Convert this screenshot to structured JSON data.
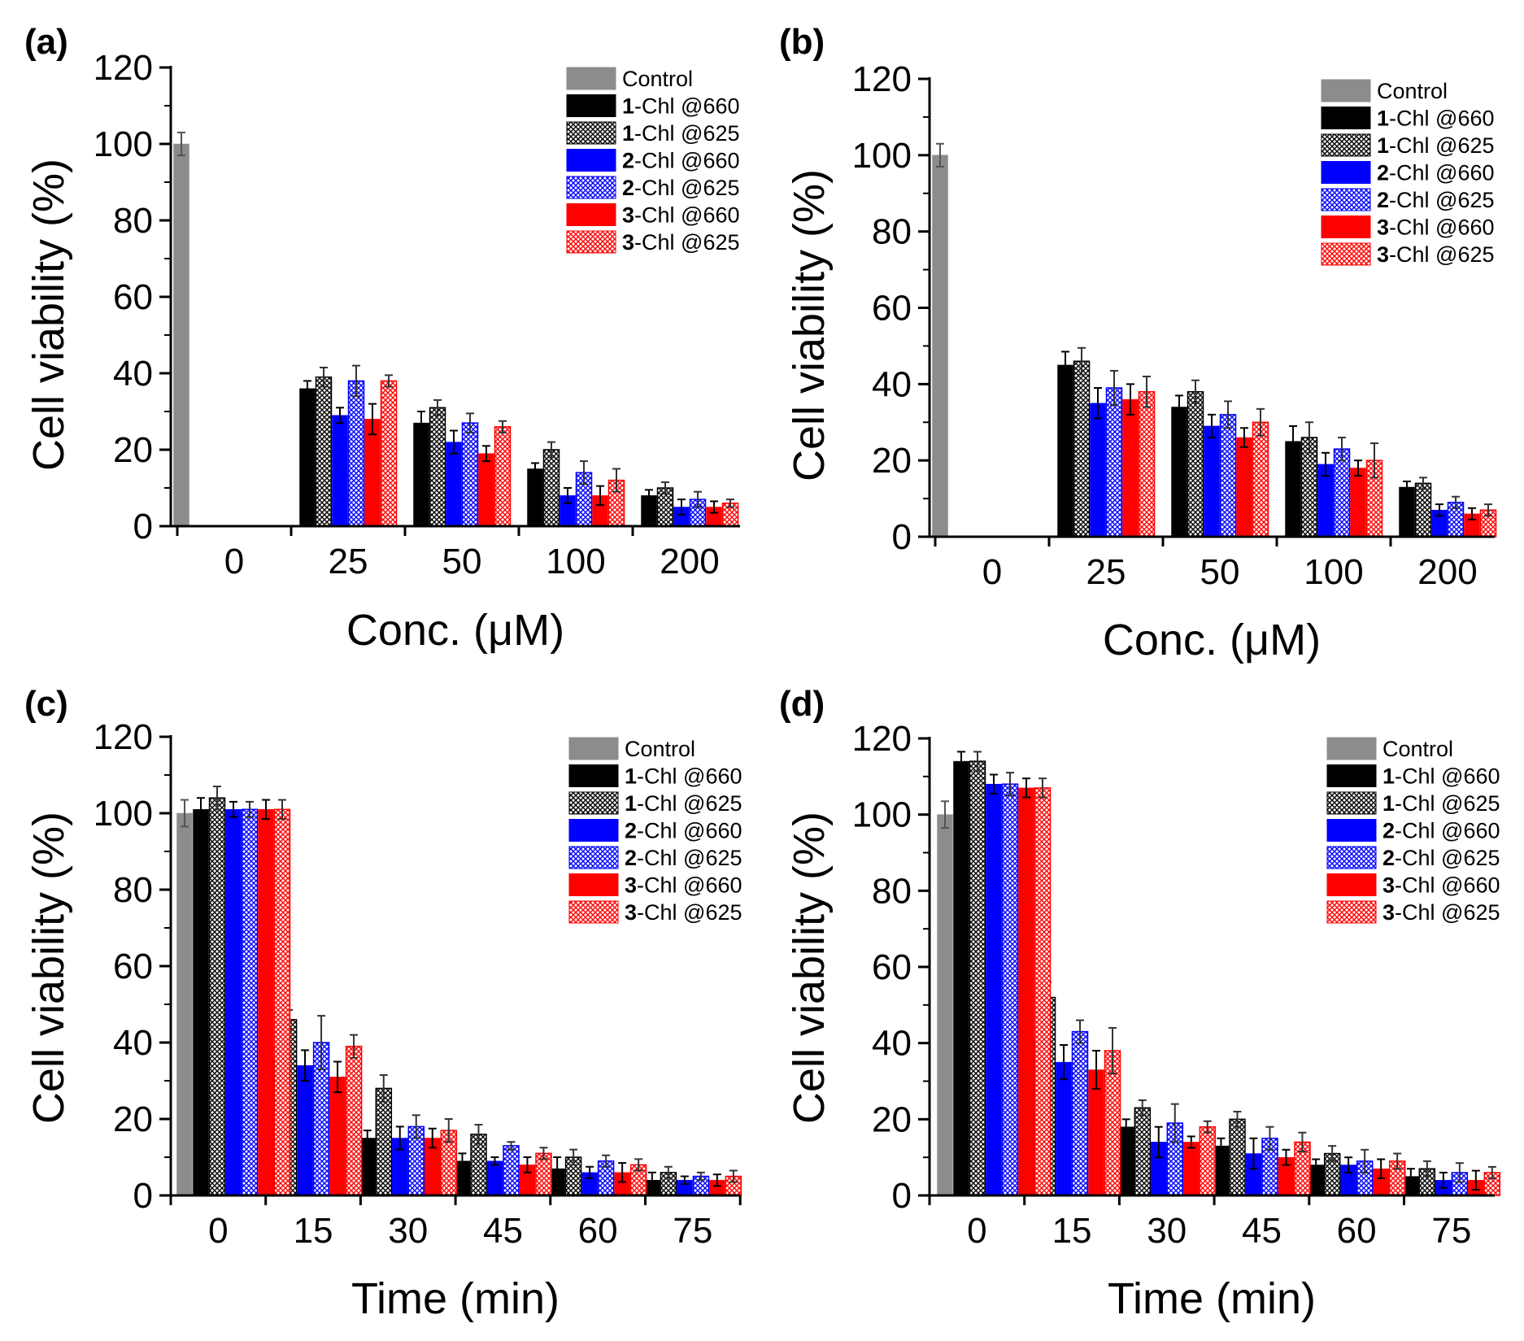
{
  "legend_series": [
    {
      "num": "",
      "name": "Control",
      "color": "#8c8c8c",
      "hatch": false
    },
    {
      "num": "1",
      "name": "-Chl @660",
      "color": "#000000",
      "hatch": false
    },
    {
      "num": "1",
      "name": "-Chl @625",
      "color": "#000000",
      "hatch": true
    },
    {
      "num": "2",
      "name": "-Chl @660",
      "color": "#0000ff",
      "hatch": false
    },
    {
      "num": "2",
      "name": "-Chl @625",
      "color": "#0000ff",
      "hatch": true
    },
    {
      "num": "3",
      "name": "-Chl @660",
      "color": "#ff0000",
      "hatch": false
    },
    {
      "num": "3",
      "name": "-Chl @625",
      "color": "#ff0000",
      "hatch": true
    }
  ],
  "chart_data": [
    {
      "panel": "(a)",
      "type": "bar",
      "xlabel": "Conc. (μM)",
      "ylabel": "Cell viability (%)",
      "ylim": [
        0,
        120
      ],
      "yticks": [
        "0",
        "20",
        "40",
        "60",
        "80",
        "100",
        "120"
      ],
      "categories": [
        "0",
        "25",
        "50",
        "100",
        "200"
      ],
      "legend_position": "top-right",
      "series": [
        {
          "name": "Control",
          "values": [
            100,
            null,
            null,
            null,
            null
          ],
          "errors": [
            3,
            null,
            null,
            null,
            null
          ]
        },
        {
          "name": "1-Chl @660",
          "values": [
            null,
            36,
            27,
            15,
            8
          ],
          "errors": [
            null,
            2,
            3,
            1.5,
            1.5
          ]
        },
        {
          "name": "1-Chl @625",
          "values": [
            null,
            39,
            31,
            20,
            10
          ],
          "errors": [
            null,
            2.5,
            2,
            2,
            1.5
          ]
        },
        {
          "name": "2-Chl @660",
          "values": [
            null,
            29,
            22,
            8,
            5
          ],
          "errors": [
            null,
            2,
            3,
            2,
            2
          ]
        },
        {
          "name": "2-Chl @625",
          "values": [
            null,
            38,
            27,
            14,
            7
          ],
          "errors": [
            null,
            4,
            2.5,
            3,
            2
          ]
        },
        {
          "name": "3-Chl @660",
          "values": [
            null,
            28,
            19,
            8,
            5
          ],
          "errors": [
            null,
            4,
            2,
            2.5,
            1.5
          ]
        },
        {
          "name": "3-Chl @625",
          "values": [
            null,
            38,
            26,
            12,
            6
          ],
          "errors": [
            null,
            1.5,
            1.5,
            3,
            1
          ]
        }
      ]
    },
    {
      "panel": "(b)",
      "type": "bar",
      "xlabel": "Conc. (μM)",
      "ylabel": "Cell viability (%)",
      "ylim": [
        0,
        120
      ],
      "yticks": [
        "0",
        "20",
        "40",
        "60",
        "80",
        "100",
        "120"
      ],
      "categories": [
        "0",
        "25",
        "50",
        "100",
        "200"
      ],
      "legend_position": "top-right",
      "series": [
        {
          "name": "Control",
          "values": [
            100,
            null,
            null,
            null,
            null
          ],
          "errors": [
            3,
            null,
            null,
            null,
            null
          ]
        },
        {
          "name": "1-Chl @660",
          "values": [
            null,
            45,
            34,
            25,
            13
          ],
          "errors": [
            null,
            3.5,
            3,
            4,
            1.5
          ]
        },
        {
          "name": "1-Chl @625",
          "values": [
            null,
            46,
            38,
            26,
            14
          ],
          "errors": [
            null,
            3.5,
            3,
            4,
            1.5
          ]
        },
        {
          "name": "2-Chl @660",
          "values": [
            null,
            35,
            29,
            19,
            7
          ],
          "errors": [
            null,
            4,
            3,
            3,
            1.5
          ]
        },
        {
          "name": "2-Chl @625",
          "values": [
            null,
            39,
            32,
            23,
            9
          ],
          "errors": [
            null,
            4.5,
            3.5,
            3,
            1.5
          ]
        },
        {
          "name": "3-Chl @660",
          "values": [
            null,
            36,
            26,
            18,
            6
          ],
          "errors": [
            null,
            4,
            2.5,
            2,
            1.5
          ]
        },
        {
          "name": "3-Chl @625",
          "values": [
            null,
            38,
            30,
            20,
            7
          ],
          "errors": [
            null,
            4,
            3.5,
            4.5,
            1.5
          ]
        }
      ]
    },
    {
      "panel": "(c)",
      "type": "bar",
      "xlabel": "Time (min)",
      "ylabel": "Cell viability (%)",
      "ylim": [
        0,
        120
      ],
      "yticks": [
        "0",
        "20",
        "40",
        "60",
        "80",
        "100",
        "120"
      ],
      "categories": [
        "0",
        "15",
        "30",
        "45",
        "60",
        "75"
      ],
      "legend_position": "top-right",
      "series": [
        {
          "name": "Control",
          "values": [
            100,
            null,
            null,
            null,
            null,
            null
          ],
          "errors": [
            3.5,
            null,
            null,
            null,
            null,
            null
          ]
        },
        {
          "name": "1-Chl @660",
          "values": [
            101,
            36,
            15,
            9,
            7,
            4
          ],
          "errors": [
            3,
            2.5,
            2,
            2,
            3,
            2
          ]
        },
        {
          "name": "1-Chl @625",
          "values": [
            104,
            46,
            28,
            16,
            10,
            6
          ],
          "errors": [
            3,
            2.5,
            3.5,
            2.5,
            2,
            1.5
          ]
        },
        {
          "name": "2-Chl @660",
          "values": [
            101,
            34,
            15,
            9,
            6,
            4
          ],
          "errors": [
            2,
            4,
            3,
            1,
            1.5,
            1
          ]
        },
        {
          "name": "2-Chl @625",
          "values": [
            101,
            40,
            18,
            13,
            9,
            5
          ],
          "errors": [
            2,
            7,
            3,
            1,
            1.5,
            1
          ]
        },
        {
          "name": "3-Chl @660",
          "values": [
            101,
            31,
            15,
            8,
            6,
            4
          ],
          "errors": [
            2.5,
            4,
            2.5,
            2,
            2.5,
            1.5
          ]
        },
        {
          "name": "3-Chl @625",
          "values": [
            101,
            39,
            17,
            11,
            8,
            5
          ],
          "errors": [
            2.5,
            3,
            3,
            1.5,
            1.5,
            1.5
          ]
        }
      ]
    },
    {
      "panel": "(d)",
      "type": "bar",
      "xlabel": "Time (min)",
      "ylabel": "Cell viability (%)",
      "ylim": [
        0,
        120
      ],
      "yticks": [
        "0",
        "20",
        "40",
        "60",
        "80",
        "100",
        "120"
      ],
      "categories": [
        "0",
        "15",
        "30",
        "45",
        "60",
        "75"
      ],
      "legend_position": "top-right",
      "series": [
        {
          "name": "Control",
          "values": [
            100,
            null,
            null,
            null,
            null,
            null
          ],
          "errors": [
            3.5,
            null,
            null,
            null,
            null,
            null
          ]
        },
        {
          "name": "1-Chl @660",
          "values": [
            114,
            41,
            18,
            13,
            8,
            5
          ],
          "errors": [
            2.5,
            3,
            2,
            2,
            1.5,
            2
          ]
        },
        {
          "name": "1-Chl @625",
          "values": [
            114,
            52,
            23,
            20,
            11,
            7
          ],
          "errors": [
            2.5,
            4,
            2,
            2,
            2,
            2
          ]
        },
        {
          "name": "2-Chl @660",
          "values": [
            108,
            35,
            14,
            11,
            8,
            4
          ],
          "errors": [
            2.5,
            4.5,
            4,
            4,
            2,
            2
          ]
        },
        {
          "name": "2-Chl @625",
          "values": [
            108,
            43,
            19,
            15,
            9,
            6
          ],
          "errors": [
            3,
            3,
            5,
            3,
            3,
            2.5
          ]
        },
        {
          "name": "3-Chl @660",
          "values": [
            107,
            33,
            14,
            10,
            7,
            4
          ],
          "errors": [
            2.5,
            5,
            1.5,
            2,
            2.5,
            2.5
          ]
        },
        {
          "name": "3-Chl @625",
          "values": [
            107,
            38,
            18,
            14,
            9,
            6
          ],
          "errors": [
            2.5,
            6,
            1.5,
            2.5,
            2,
            1.5
          ]
        }
      ]
    }
  ]
}
